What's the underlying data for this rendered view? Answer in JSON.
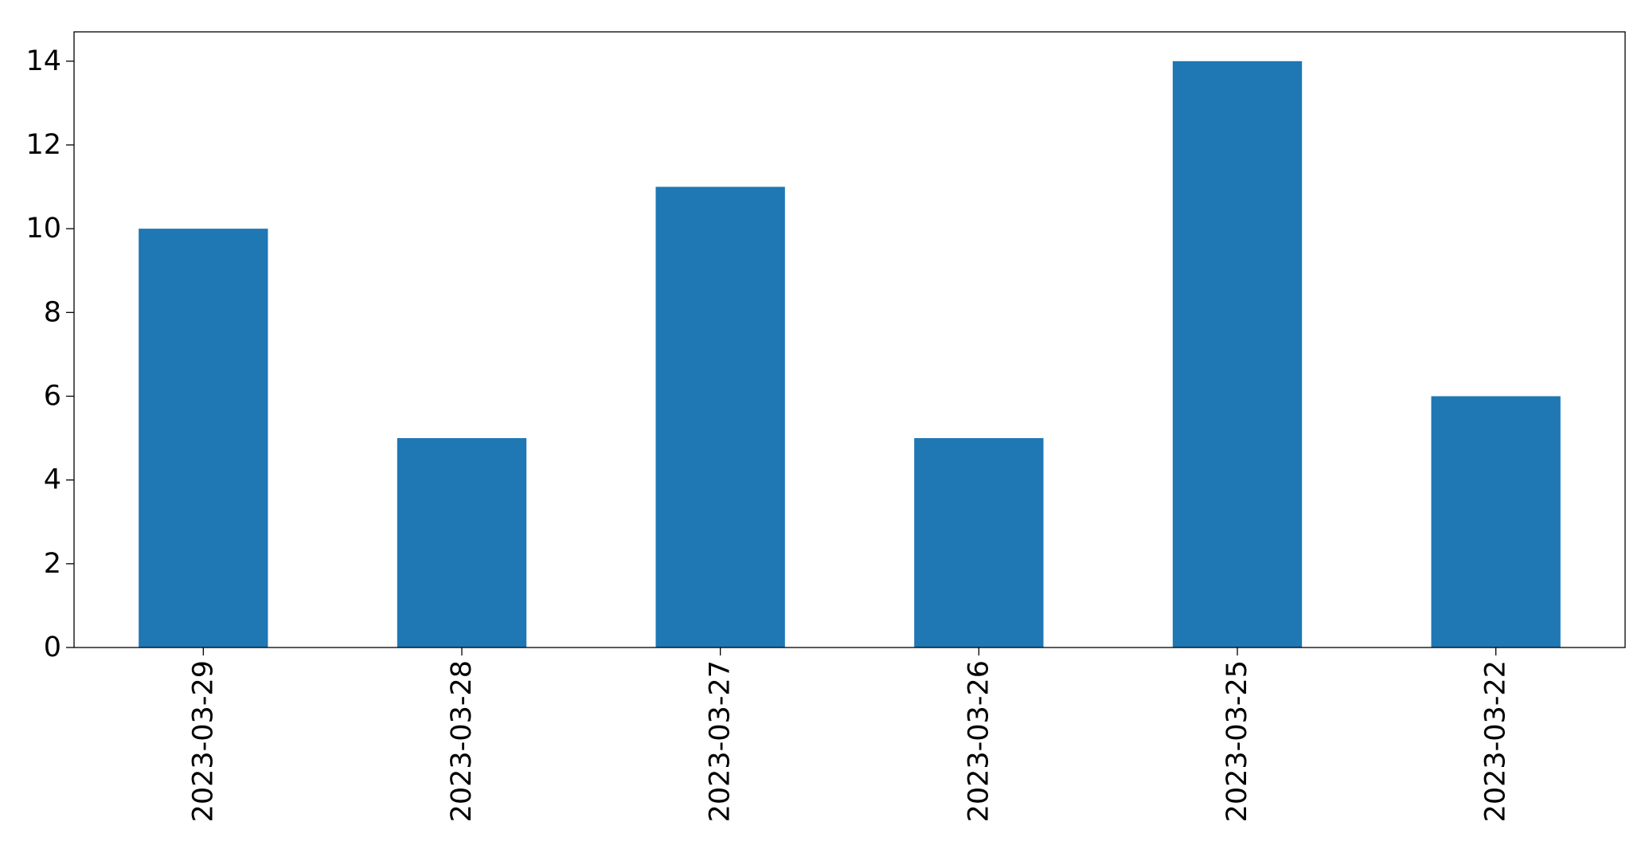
{
  "chart_data": {
    "type": "bar",
    "title": "",
    "xlabel": "",
    "ylabel": "",
    "categories": [
      "2023-03-29",
      "2023-03-28",
      "2023-03-27",
      "2023-03-26",
      "2023-03-25",
      "2023-03-22"
    ],
    "values": [
      10,
      5,
      11,
      5,
      14,
      6
    ],
    "ylim": [
      0,
      14.7
    ],
    "yticks": [
      0,
      2,
      4,
      6,
      8,
      10,
      12,
      14
    ],
    "grid": false,
    "legend": "none",
    "bar_color": "#1f77b4"
  }
}
